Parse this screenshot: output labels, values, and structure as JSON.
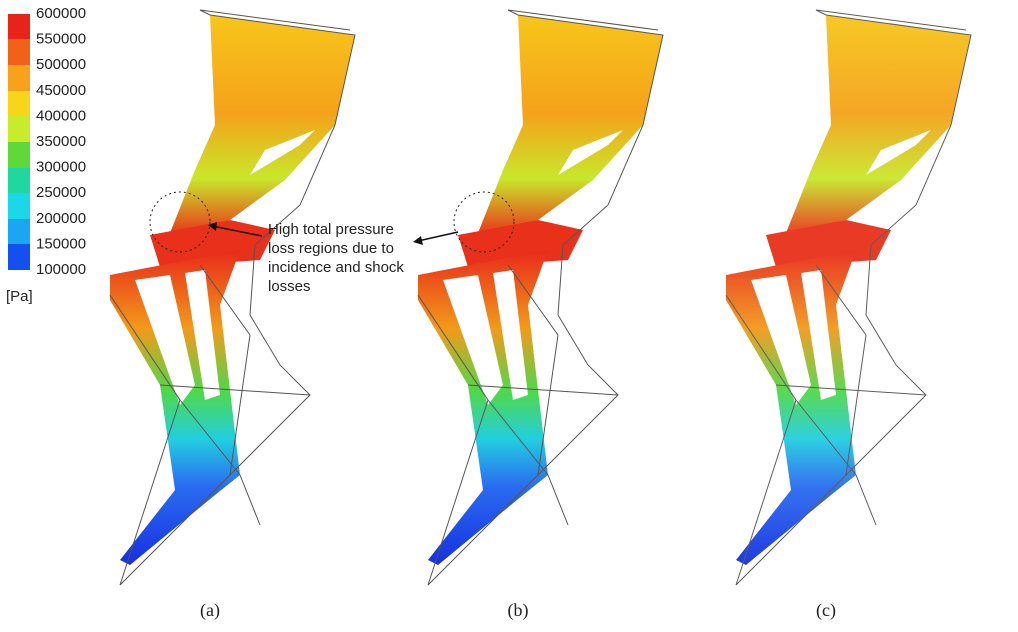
{
  "legend": {
    "ticks": [
      600000,
      550000,
      500000,
      450000,
      400000,
      350000,
      300000,
      250000,
      200000,
      150000,
      100000
    ],
    "unit": "[Pa]"
  },
  "annotation": {
    "lines": [
      "High total pressure",
      "loss regions due to",
      "incidence and shock",
      "losses"
    ]
  },
  "panels": [
    {
      "label": "(a)"
    },
    {
      "label": "(b)"
    },
    {
      "label": "(c)"
    }
  ]
}
